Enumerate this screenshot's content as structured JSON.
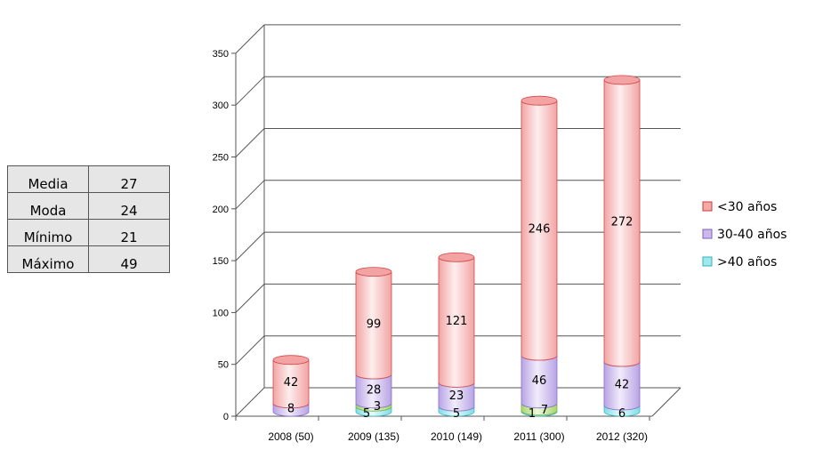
{
  "stats_table": {
    "rows": [
      {
        "label": "Media",
        "value": "27"
      },
      {
        "label": "Moda",
        "value": "24"
      },
      {
        "label": "Mínimo",
        "value": "21"
      },
      {
        "label": "Máximo",
        "value": "49"
      }
    ]
  },
  "chart_data": {
    "type": "bar",
    "stacked": true,
    "style": "3d-cylinder",
    "categories": [
      "2008 (50)",
      "2009 (135)",
      "2010 (149)",
      "2011 (300)",
      "2012 (320)"
    ],
    "series": [
      {
        "name": ">40 años",
        "values": [
          0,
          5,
          5,
          1,
          6
        ],
        "color": "#9fe8ee"
      },
      {
        "name": "",
        "values": [
          0,
          3,
          0,
          7,
          0
        ],
        "color": "#b5dd8c"
      },
      {
        "name": "30-40 años",
        "values": [
          8,
          28,
          23,
          46,
          42
        ],
        "color": "#cbb9ea"
      },
      {
        "name": "<30 años",
        "values": [
          42,
          99,
          121,
          246,
          272
        ],
        "color": "#f4a9a9"
      }
    ],
    "data_labels": [
      {
        "category": 0,
        "series": 2,
        "text": "8"
      },
      {
        "category": 0,
        "series": 3,
        "text": "42"
      },
      {
        "category": 1,
        "series": 0,
        "text": "5"
      },
      {
        "category": 1,
        "series": 1,
        "text": "3"
      },
      {
        "category": 1,
        "series": 2,
        "text": "28"
      },
      {
        "category": 1,
        "series": 3,
        "text": "99"
      },
      {
        "category": 2,
        "series": 0,
        "text": "5"
      },
      {
        "category": 2,
        "series": 2,
        "text": "23"
      },
      {
        "category": 2,
        "series": 3,
        "text": "121"
      },
      {
        "category": 3,
        "series": 0,
        "text": "1"
      },
      {
        "category": 3,
        "series": 1,
        "text": "7"
      },
      {
        "category": 3,
        "series": 2,
        "text": "46"
      },
      {
        "category": 3,
        "series": 3,
        "text": "246"
      },
      {
        "category": 4,
        "series": 0,
        "text": "6"
      },
      {
        "category": 4,
        "series": 2,
        "text": "42"
      },
      {
        "category": 4,
        "series": 3,
        "text": "272"
      }
    ],
    "yticks": [
      "0",
      "50",
      "100",
      "150",
      "200",
      "250",
      "300",
      "350"
    ],
    "ylim": [
      0,
      350
    ],
    "grid": true,
    "legend": [
      {
        "label": "<30 años",
        "color": "#f4a9a9",
        "border": "#cc3b3b"
      },
      {
        "label": "30-40 años",
        "color": "#cbb9ea",
        "border": "#7c5cc4"
      },
      {
        "label": ">40 años",
        "color": "#9fe8ee",
        "border": "#2fb3bf"
      }
    ],
    "legend_position": "right",
    "title": "",
    "xlabel": "",
    "ylabel": ""
  }
}
